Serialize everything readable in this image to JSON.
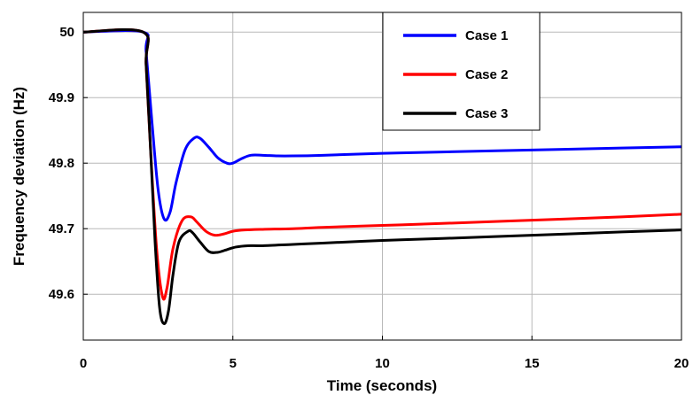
{
  "chart_data": {
    "type": "line",
    "title": "",
    "xlabel": "Time (seconds)",
    "ylabel": "Frequency deviation (Hz)",
    "xlim": [
      0,
      20
    ],
    "ylim": [
      49.53,
      50.03
    ],
    "xticks": [
      0,
      5,
      10,
      15,
      20
    ],
    "xtick_labels": [
      "0",
      "5",
      "10",
      "15",
      "20"
    ],
    "yticks": [
      49.6,
      49.7,
      49.8,
      49.9,
      50.0
    ],
    "ytick_labels": [
      "49.6",
      "49.7",
      "49.8",
      "49.9",
      "50"
    ],
    "grid": true,
    "legend_position": "top-right",
    "series": [
      {
        "name": "Case 1",
        "color": "#0000ff",
        "x": [
          0,
          2.0,
          2.1,
          2.3,
          2.5,
          2.7,
          2.9,
          3.1,
          3.4,
          3.7,
          3.9,
          4.2,
          4.5,
          4.8,
          5.0,
          5.3,
          5.6,
          6.0,
          6.5,
          7.0,
          8,
          10,
          12,
          15,
          18,
          20
        ],
        "y": [
          50.0,
          50.0,
          49.97,
          49.86,
          49.76,
          49.715,
          49.725,
          49.77,
          49.82,
          49.838,
          49.838,
          49.824,
          49.808,
          49.8,
          49.8,
          49.807,
          49.812,
          49.812,
          49.811,
          49.811,
          49.812,
          49.815,
          49.817,
          49.82,
          49.823,
          49.825
        ]
      },
      {
        "name": "Case 2",
        "color": "#ff0000",
        "x": [
          0,
          2.0,
          2.1,
          2.25,
          2.45,
          2.65,
          2.8,
          3.0,
          3.3,
          3.6,
          3.8,
          4.1,
          4.4,
          4.7,
          5.0,
          5.4,
          6.0,
          7,
          8,
          10,
          12,
          15,
          18,
          20
        ],
        "y": [
          50.0,
          50.0,
          49.95,
          49.82,
          49.67,
          49.596,
          49.61,
          49.67,
          49.712,
          49.718,
          49.71,
          49.696,
          49.69,
          49.692,
          49.696,
          49.698,
          49.699,
          49.7,
          49.702,
          49.705,
          49.708,
          49.713,
          49.718,
          49.722
        ]
      },
      {
        "name": "Case 3",
        "color": "#000000",
        "x": [
          0,
          2.0,
          2.1,
          2.25,
          2.4,
          2.55,
          2.7,
          2.85,
          3.0,
          3.2,
          3.5,
          3.65,
          3.9,
          4.2,
          4.5,
          4.8,
          5.1,
          5.5,
          6.0,
          7,
          8,
          10,
          12,
          15,
          18,
          20
        ],
        "y": [
          50.0,
          50.0,
          49.95,
          49.82,
          49.68,
          49.58,
          49.555,
          49.575,
          49.63,
          49.68,
          49.696,
          49.694,
          49.68,
          49.665,
          49.664,
          49.668,
          49.672,
          49.674,
          49.674,
          49.676,
          49.678,
          49.682,
          49.685,
          49.69,
          49.695,
          49.698
        ]
      }
    ]
  }
}
